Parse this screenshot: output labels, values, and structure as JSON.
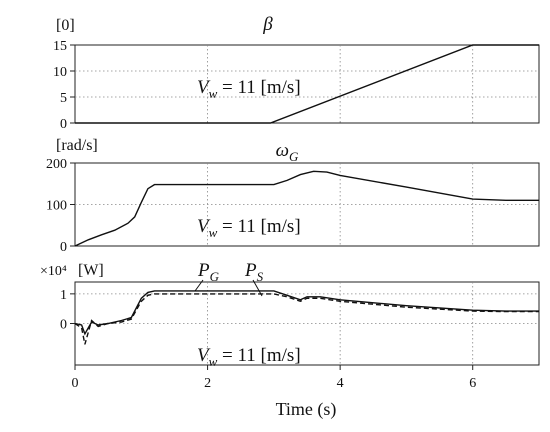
{
  "figure": {
    "xlabel": "Time (s)",
    "x_ticks": [
      "0",
      "2",
      "4",
      "6"
    ]
  },
  "chart_data": [
    {
      "type": "line",
      "title": "β",
      "ylabel": "[0]",
      "xlim": [
        0,
        7
      ],
      "ylim": [
        0,
        15
      ],
      "y_ticks": [
        "0",
        "5",
        "10",
        "15"
      ],
      "annotation": "Vw = 11 [m/s]",
      "grid": true,
      "series": [
        {
          "style": "solid",
          "x": [
            0,
            2.95,
            6,
            7
          ],
          "y": [
            0,
            0,
            15,
            15
          ]
        }
      ]
    },
    {
      "type": "line",
      "title": "ωG",
      "ylabel": "[rad/s]",
      "xlim": [
        0,
        7
      ],
      "ylim": [
        0,
        200
      ],
      "y_ticks": [
        "0",
        "100",
        "200"
      ],
      "annotation": "Vw = 11 [m/s]",
      "grid": true,
      "series": [
        {
          "style": "solid",
          "x": [
            0,
            0.2,
            0.4,
            0.6,
            0.8,
            0.9,
            1.0,
            1.1,
            1.2,
            1.5,
            2.0,
            3.0,
            3.2,
            3.4,
            3.6,
            3.8,
            4.0,
            5.0,
            6.0,
            6.5,
            7.0
          ],
          "y": [
            0,
            15,
            27,
            38,
            55,
            70,
            105,
            138,
            148,
            148,
            148,
            148,
            158,
            172,
            180,
            178,
            170,
            142,
            113,
            110,
            110
          ]
        }
      ]
    },
    {
      "type": "line",
      "title": "",
      "ylabel": "[W]",
      "scale_label": "×10⁴",
      "xlim": [
        0,
        7
      ],
      "ylim": [
        -1.4,
        1.4
      ],
      "y_ticks": [
        "0",
        "1"
      ],
      "annotation": "Vw = 11 [m/s]",
      "grid": true,
      "series": [
        {
          "name": "PG",
          "style": "solid",
          "x": [
            0,
            0.1,
            0.15,
            0.25,
            0.35,
            0.5,
            0.7,
            0.85,
            1.0,
            1.1,
            1.2,
            1.5,
            2.0,
            3.0,
            3.2,
            3.4,
            3.5,
            3.7,
            4.0,
            5.0,
            6.0,
            6.5,
            7.0
          ],
          "y": [
            0,
            -0.05,
            -0.35,
            0.05,
            -0.05,
            0.0,
            0.1,
            0.2,
            0.85,
            1.05,
            1.1,
            1.1,
            1.1,
            1.1,
            0.95,
            0.8,
            0.9,
            0.9,
            0.8,
            0.6,
            0.45,
            0.42,
            0.42
          ]
        },
        {
          "name": "PS",
          "style": "dashed",
          "x": [
            0,
            0.1,
            0.15,
            0.25,
            0.35,
            0.5,
            0.7,
            0.85,
            1.0,
            1.1,
            1.2,
            1.5,
            2.0,
            3.0,
            3.2,
            3.4,
            3.5,
            3.7,
            4.0,
            5.0,
            6.0,
            6.5,
            7.0
          ],
          "y": [
            0,
            -0.15,
            -0.7,
            0.1,
            -0.1,
            0.0,
            0.05,
            0.15,
            0.75,
            0.95,
            1.0,
            1.0,
            1.0,
            1.0,
            0.9,
            0.75,
            0.85,
            0.85,
            0.75,
            0.55,
            0.42,
            0.4,
            0.4
          ]
        }
      ]
    }
  ]
}
